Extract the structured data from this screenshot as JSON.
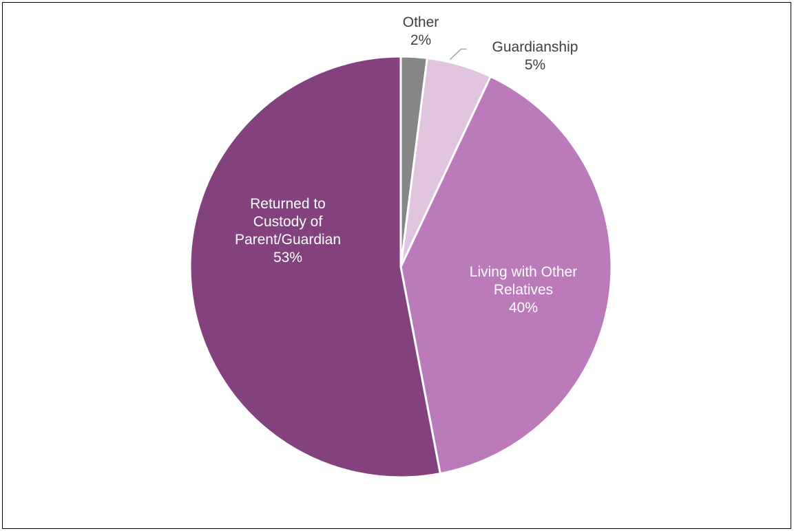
{
  "chart_data": {
    "type": "pie",
    "start_angle_deg": 0,
    "direction": "clockwise",
    "slices": [
      {
        "label": "Other",
        "percent_label": "2%",
        "value": 2,
        "color": "#868686",
        "label_color": "#404040",
        "label_lines": [
          "Other",
          "2%"
        ],
        "label_position": "outside"
      },
      {
        "label": "Guardianship",
        "percent_label": "5%",
        "value": 5,
        "color": "#e1c4e0",
        "label_color": "#404040",
        "label_lines": [
          "Guardianship",
          "5%"
        ],
        "label_position": "outside",
        "leader_line": true
      },
      {
        "label": "Living with Other Relatives",
        "percent_label": "40%",
        "value": 40,
        "color": "#bb7bba",
        "label_color": "#ffffff",
        "label_lines": [
          "Living with Other",
          "Relatives",
          "40%"
        ],
        "label_position": "inside"
      },
      {
        "label": "Returned to Custody of Parent/Guardian",
        "percent_label": "53%",
        "value": 53,
        "color": "#83427d",
        "label_color": "#ffffff",
        "label_lines": [
          "Returned to",
          "Custody of",
          "Parent/Guardian",
          "53%"
        ],
        "label_position": "inside"
      }
    ]
  }
}
